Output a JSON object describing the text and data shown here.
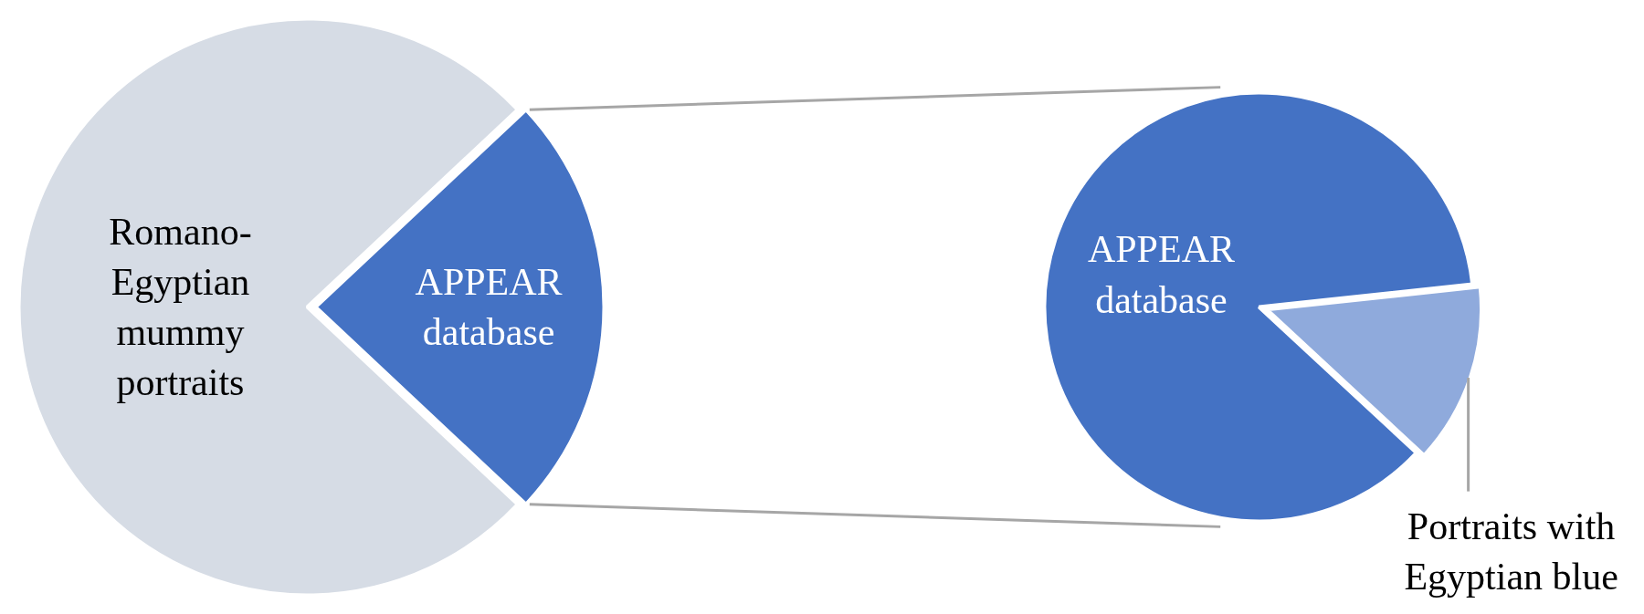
{
  "chart_data": [
    {
      "type": "pie",
      "categories": [
        "Romano-Egyptian mummy portraits",
        "APPEAR database"
      ],
      "values": [
        76,
        24
      ],
      "colors": [
        "#d6dce5",
        "#4472c4"
      ]
    },
    {
      "type": "pie",
      "categories": [
        "APPEAR database",
        "Portraits with Egyptian blue"
      ],
      "values": [
        86.4,
        13.6
      ],
      "colors": [
        "#4472c4",
        "#8faadc"
      ]
    }
  ]
}
